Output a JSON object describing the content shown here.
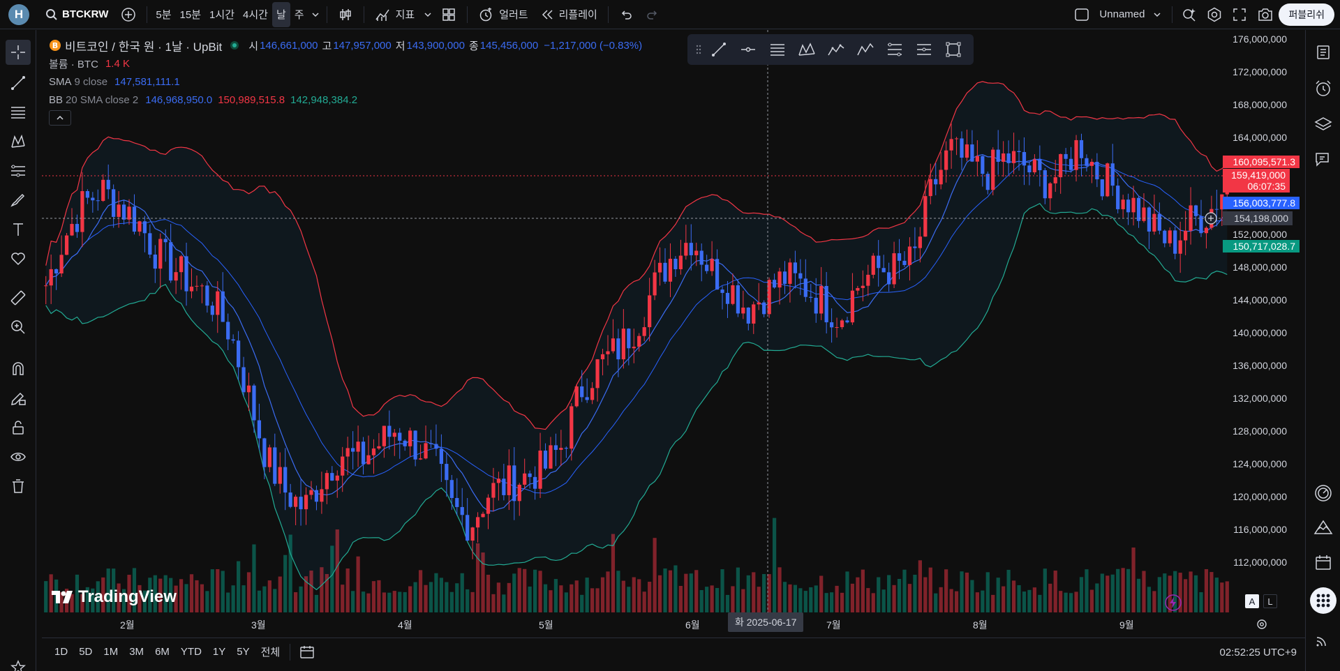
{
  "topbar": {
    "avatar_letter": "H",
    "symbol": "BTCKRW",
    "intervals": [
      "5분",
      "15분",
      "1시간",
      "4시간",
      "날",
      "주"
    ],
    "active_interval": "날",
    "indicators_label": "지표",
    "alert_label": "얼러트",
    "replay_label": "리플레이",
    "layout_name": "Unnamed",
    "publish_label": "퍼블리쉬"
  },
  "legend": {
    "title": "비트코인 / 한국 원 · 1날 · UpBit",
    "o_label": "시",
    "o_value": "146,661,000",
    "h_label": "고",
    "h_value": "147,957,000",
    "l_label": "저",
    "l_value": "143,900,000",
    "c_label": "종",
    "c_value": "145,456,000",
    "change": "−1,217,000 (−0.83%)",
    "volume_label": "볼륨 · BTC",
    "volume_value": "1.4 K",
    "sma_label": "SMA",
    "sma_params": "9 close",
    "sma_value": "147,581,111.1",
    "bb_label": "BB",
    "bb_params": "20 SMA close 2",
    "bb_basis": "146,968,950.0",
    "bb_upper": "150,989,515.8",
    "bb_lower": "142,948,384.2"
  },
  "price_axis": [
    "176,000,000",
    "172,000,000",
    "168,000,000",
    "164,000,000",
    "152,000,000",
    "148,000,000",
    "144,000,000",
    "140,000,000",
    "136,000,000",
    "132,000,000",
    "128,000,000",
    "124,000,000",
    "120,000,000",
    "116,000,000",
    "112,000,000"
  ],
  "price_tags": {
    "upper": "160,095,571.3",
    "last": "159,419,000",
    "countdown": "06:07:35",
    "basis": "156,003,777.8",
    "cursor": "154,198,000",
    "lower": "150,717,028.7"
  },
  "time_axis": [
    "2월",
    "3월",
    "4월",
    "5월",
    "6월",
    "7월",
    "8월",
    "9월"
  ],
  "crosshair_date": "화 2025-06-17",
  "bottombar": {
    "ranges": [
      "1D",
      "5D",
      "1M",
      "3M",
      "6M",
      "YTD",
      "1Y",
      "5Y",
      "전체"
    ],
    "clock": "02:52:25 UTC+9"
  },
  "axis_buttons": {
    "auto": "A",
    "log": "L"
  },
  "watermark": "TradingView",
  "colors": {
    "up": "#f23645",
    "down": "#3b6cf3",
    "bb_upper": "#f23645",
    "bb_lower": "#22ab94",
    "sma": "#3b6cf3"
  },
  "chart_data": {
    "type": "candlestick",
    "price_range": [
      108000000,
      178000000
    ],
    "close_series_approx": [
      146000000,
      152000000,
      156000000,
      158000000,
      156000000,
      154000000,
      150000000,
      148000000,
      146000000,
      144000000,
      140000000,
      132000000,
      124000000,
      120000000,
      118000000,
      122000000,
      125000000,
      124000000,
      126000000,
      128000000,
      126000000,
      124000000,
      118000000,
      116000000,
      120000000,
      121000000,
      122000000,
      123000000,
      126000000,
      133000000,
      136000000,
      138000000,
      141000000,
      146000000,
      150000000,
      152000000,
      148000000,
      146000000,
      143000000,
      145000000,
      147000000,
      146000000,
      144000000,
      142000000,
      146000000,
      148000000,
      148000000,
      149000000,
      158000000,
      163000000,
      161000000,
      160000000,
      162000000,
      161000000,
      159000000,
      160000000,
      164000000,
      160000000,
      158000000,
      156000000,
      153000000,
      151000000,
      154000000,
      155000000,
      159000000
    ]
  }
}
